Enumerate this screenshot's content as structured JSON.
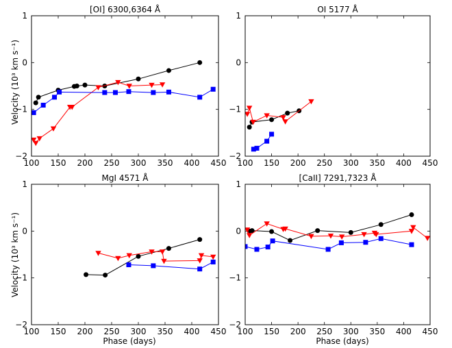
{
  "figure": {
    "ylabel": "Velocity (10³ km s⁻¹)",
    "xlabel": "Phase (days)"
  },
  "colors": {
    "black": "#000000",
    "red": "#ff0000",
    "blue": "#0000ff"
  },
  "chart_data": [
    {
      "type": "line",
      "title": "[OI] 6300,6364 Å",
      "xlim": [
        100,
        450
      ],
      "ylim": [
        -2,
        1
      ],
      "xticks": [
        100,
        150,
        200,
        250,
        300,
        350,
        400,
        450
      ],
      "yticks": [
        -2,
        -1,
        0,
        1
      ],
      "series": [
        {
          "color": "#000000",
          "marker": "circle",
          "x": [
            108,
            113,
            150,
            180,
            185,
            200,
            237,
            300,
            357,
            415
          ],
          "y": [
            -0.86,
            -0.74,
            -0.59,
            -0.51,
            -0.5,
            -0.48,
            -0.5,
            -0.35,
            -0.17,
            0.0
          ]
        },
        {
          "color": "#ff0000",
          "marker": "triangle-down",
          "x": [
            104,
            108,
            115,
            141,
            172,
            176,
            225,
            262,
            283,
            325,
            345
          ],
          "y": [
            -1.65,
            -1.72,
            -1.62,
            -1.41,
            -0.95,
            -0.95,
            -0.53,
            -0.42,
            -0.5,
            -0.48,
            -0.47
          ]
        },
        {
          "color": "#0000ff",
          "marker": "square",
          "x": [
            104,
            122,
            143,
            152,
            237,
            257,
            282,
            328,
            357,
            415,
            440
          ],
          "y": [
            -1.07,
            -0.91,
            -0.74,
            -0.63,
            -0.64,
            -0.64,
            -0.62,
            -0.64,
            -0.63,
            -0.74,
            -0.57
          ]
        }
      ]
    },
    {
      "type": "line",
      "title": "OI 5177 Å",
      "xlim": [
        100,
        450
      ],
      "ylim": [
        -2,
        1
      ],
      "xticks": [
        100,
        150,
        200,
        250,
        300,
        350,
        400,
        450
      ],
      "yticks": [
        -2,
        -1,
        0,
        1
      ],
      "series": [
        {
          "color": "#000000",
          "marker": "circle",
          "x": [
            108,
            113,
            150,
            180,
            202
          ],
          "y": [
            -1.38,
            -1.27,
            -1.22,
            -1.08,
            -1.03
          ]
        },
        {
          "color": "#ff0000",
          "marker": "triangle-down",
          "x": [
            104,
            108,
            115,
            141,
            172,
            176,
            225
          ],
          "y": [
            -1.1,
            -0.97,
            -1.27,
            -1.13,
            -1.17,
            -1.26,
            -0.83
          ]
        },
        {
          "color": "#0000ff",
          "marker": "square",
          "x": [
            116,
            122,
            141,
            150
          ],
          "y": [
            -1.85,
            -1.83,
            -1.68,
            -1.53
          ]
        }
      ]
    },
    {
      "type": "line",
      "title": "MgI 4571 Å",
      "xlim": [
        100,
        450
      ],
      "ylim": [
        -2,
        1
      ],
      "xticks": [
        100,
        150,
        200,
        250,
        300,
        350,
        400,
        450
      ],
      "yticks": [
        -2,
        -1,
        0,
        1
      ],
      "series": [
        {
          "color": "#000000",
          "marker": "circle",
          "x": [
            202,
            238,
            300,
            357,
            415
          ],
          "y": [
            -0.93,
            -0.94,
            -0.54,
            -0.37,
            -0.18
          ]
        },
        {
          "color": "#ff0000",
          "marker": "triangle-down",
          "x": [
            225,
            262,
            283,
            325,
            345,
            348,
            415,
            418,
            440
          ],
          "y": [
            -0.47,
            -0.58,
            -0.52,
            -0.44,
            -0.44,
            -0.64,
            -0.63,
            -0.52,
            -0.55
          ]
        },
        {
          "color": "#0000ff",
          "marker": "square",
          "x": [
            282,
            328,
            415,
            440
          ],
          "y": [
            -0.72,
            -0.74,
            -0.81,
            -0.66
          ]
        }
      ]
    },
    {
      "type": "line",
      "title": "[CaII] 7291,7323 Å",
      "xlim": [
        100,
        450
      ],
      "ylim": [
        -2,
        1
      ],
      "xticks": [
        100,
        150,
        200,
        250,
        300,
        350,
        400,
        450
      ],
      "yticks": [
        -2,
        -1,
        0,
        1
      ],
      "series": [
        {
          "color": "#000000",
          "marker": "circle",
          "x": [
            108,
            113,
            150,
            185,
            237,
            300,
            357,
            415
          ],
          "y": [
            0.0,
            0.01,
            -0.01,
            -0.2,
            0.01,
            -0.03,
            0.14,
            0.35
          ]
        },
        {
          "color": "#ff0000",
          "marker": "triangle-down",
          "x": [
            104,
            108,
            141,
            172,
            176,
            225,
            262,
            283,
            325,
            345,
            348,
            415,
            418,
            445
          ],
          "y": [
            0.03,
            -0.09,
            0.16,
            0.04,
            0.05,
            -0.11,
            -0.1,
            -0.12,
            -0.07,
            -0.04,
            -0.07,
            0.0,
            0.08,
            -0.15
          ]
        },
        {
          "color": "#0000ff",
          "marker": "square",
          "x": [
            100,
            122,
            143,
            152,
            257,
            282,
            328,
            357,
            415
          ],
          "y": [
            -0.33,
            -0.39,
            -0.34,
            -0.21,
            -0.39,
            -0.25,
            -0.24,
            -0.16,
            -0.29
          ]
        }
      ]
    }
  ]
}
